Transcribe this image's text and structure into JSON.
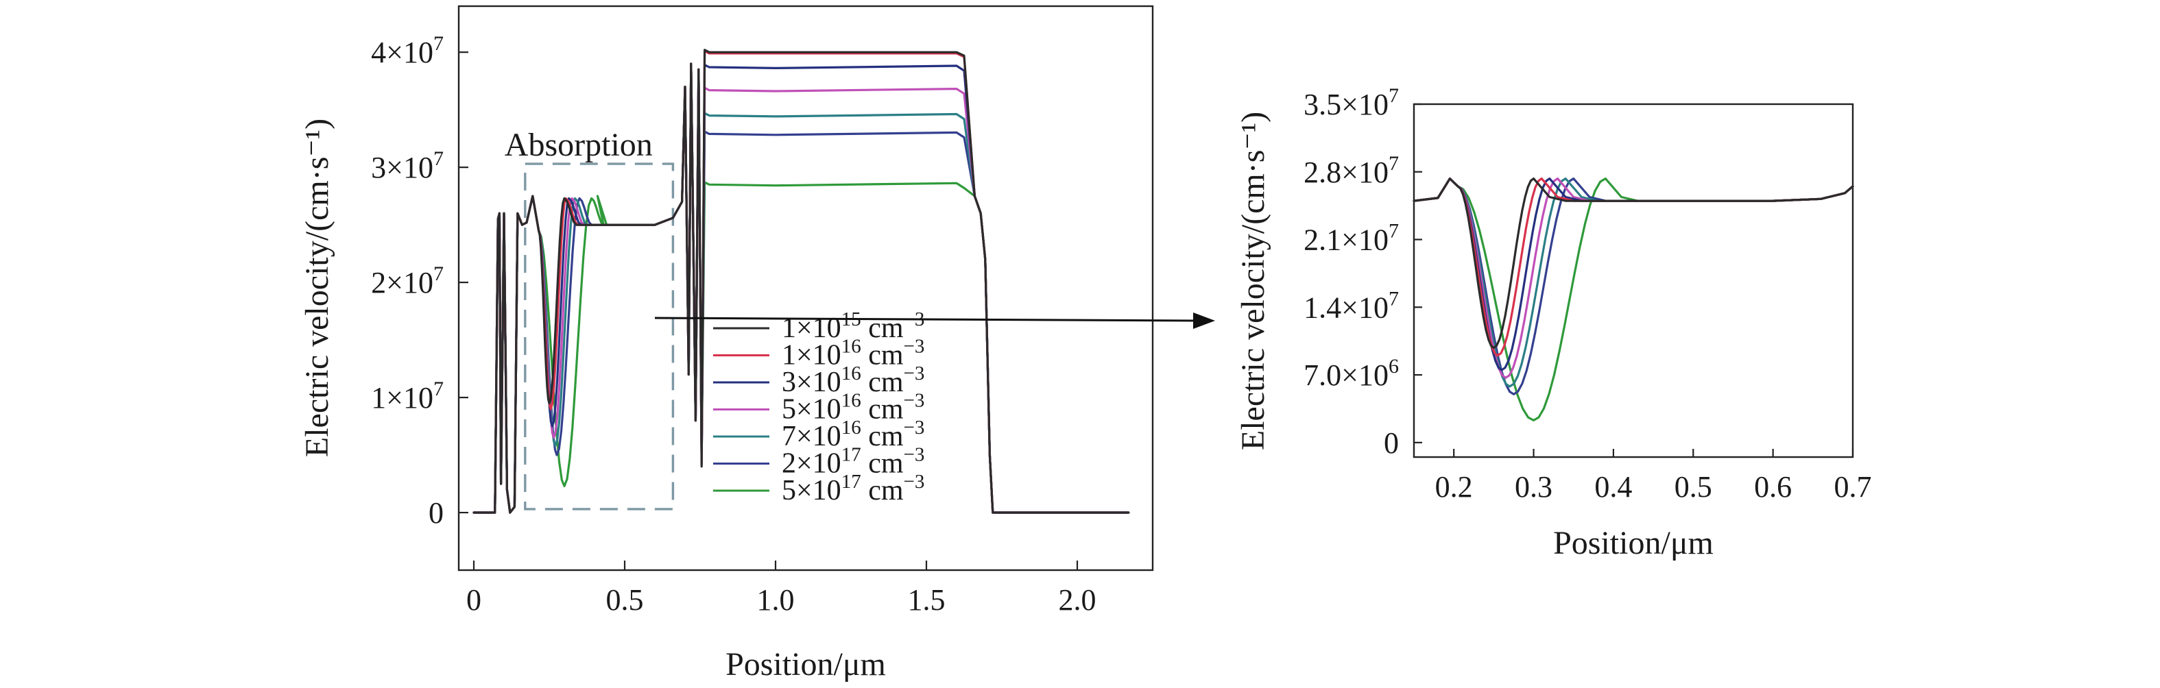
{
  "colors": {
    "s1": "#2b2b2b",
    "s2": "#d8324c",
    "s3": "#25307f",
    "s4": "#c050b8",
    "s5": "#2b7f86",
    "s6": "#34408f",
    "s7": "#2f9a3a",
    "box": "#7e98a4"
  },
  "chart_data": [
    {
      "type": "line",
      "xlabel": "Position/μm",
      "ylabel": "Electric velocity/(cm·s⁻¹)",
      "xlim": [
        -0.05,
        2.25
      ],
      "ylim": [
        -5000000,
        44000000
      ],
      "xticks": [
        0,
        0.5,
        1.0,
        1.5,
        2.0
      ],
      "xtick_labels": [
        "0",
        "0.5",
        "1.0",
        "1.5",
        "2.0"
      ],
      "yticks": [
        0,
        10000000,
        20000000,
        30000000,
        40000000
      ],
      "ytick_labels": [
        {
          "base": "0",
          "exp": ""
        },
        {
          "base": "1×10",
          "exp": "7"
        },
        {
          "base": "2×10",
          "exp": "7"
        },
        {
          "base": "3×10",
          "exp": "7"
        },
        {
          "base": "4×10",
          "exp": "7"
        }
      ],
      "annotation": "Absorption",
      "absorption_region": {
        "x": [
          0.17,
          0.66
        ],
        "y": [
          300000,
          30300000
        ]
      },
      "legend_placement": "bottom-center",
      "series": [
        {
          "name": {
            "base": "1×10",
            "exp": "15",
            "unit": " cm",
            "uexp": "−3"
          },
          "color_key": "s1",
          "plateau": 40000000,
          "dip_min": 9500000,
          "dip_x": 0.25,
          "dip_end": 0.3
        },
        {
          "name": {
            "base": "1×10",
            "exp": "16",
            "unit": " cm",
            "uexp": "−3"
          },
          "color_key": "s2",
          "plateau": 39900000,
          "dip_min": 9000000,
          "dip_x": 0.255,
          "dip_end": 0.305
        },
        {
          "name": {
            "base": "3×10",
            "exp": "16",
            "unit": " cm",
            "uexp": "−3"
          },
          "color_key": "s3",
          "plateau": 38700000,
          "dip_min": 7500000,
          "dip_x": 0.26,
          "dip_end": 0.315
        },
        {
          "name": {
            "base": "5×10",
            "exp": "16",
            "unit": " cm",
            "uexp": "−3"
          },
          "color_key": "s4",
          "plateau": 36700000,
          "dip_min": 6500000,
          "dip_x": 0.265,
          "dip_end": 0.325
        },
        {
          "name": {
            "base": "7×10",
            "exp": "16",
            "unit": " cm",
            "uexp": "−3"
          },
          "color_key": "s5",
          "plateau": 34500000,
          "dip_min": 5800000,
          "dip_x": 0.27,
          "dip_end": 0.335
        },
        {
          "name": {
            "base": "2×10",
            "exp": "17",
            "unit": " cm",
            "uexp": "−3"
          },
          "color_key": "s6",
          "plateau": 32900000,
          "dip_min": 5000000,
          "dip_x": 0.275,
          "dip_end": 0.35
        },
        {
          "name": {
            "base": "5×10",
            "exp": "17",
            "unit": " cm",
            "uexp": "−3"
          },
          "color_key": "s7",
          "plateau": 28500000,
          "dip_min": 2300000,
          "dip_x": 0.3,
          "dip_end": 0.39
        }
      ]
    },
    {
      "type": "line",
      "xlabel": "Position/μm",
      "ylabel": "Electric velocity/(cm·s⁻¹)",
      "xlim": [
        0.15,
        0.7
      ],
      "ylim": [
        -1500000,
        35000000
      ],
      "xticks": [
        0.2,
        0.3,
        0.4,
        0.5,
        0.6,
        0.7
      ],
      "xtick_labels": [
        "0.2",
        "0.3",
        "0.4",
        "0.5",
        "0.6",
        "0.7"
      ],
      "yticks": [
        0,
        7000000,
        14000000,
        21000000,
        28000000,
        35000000
      ],
      "ytick_labels": [
        {
          "base": "0",
          "exp": ""
        },
        {
          "base": "7.0×10",
          "exp": "6"
        },
        {
          "base": "1.4×10",
          "exp": "7"
        },
        {
          "base": "2.1×10",
          "exp": "7"
        },
        {
          "base": "2.8×10",
          "exp": "7"
        },
        {
          "base": "3.5×10",
          "exp": "7"
        }
      ],
      "baseline": 25000000,
      "series_minima": [
        {
          "x": 0.25,
          "y": 9800000,
          "peak_x": 0.3
        },
        {
          "x": 0.255,
          "y": 9000000,
          "peak_x": 0.31
        },
        {
          "x": 0.26,
          "y": 7500000,
          "peak_x": 0.32
        },
        {
          "x": 0.265,
          "y": 6700000,
          "peak_x": 0.33
        },
        {
          "x": 0.27,
          "y": 5800000,
          "peak_x": 0.34
        },
        {
          "x": 0.275,
          "y": 5000000,
          "peak_x": 0.35
        },
        {
          "x": 0.3,
          "y": 2300000,
          "peak_x": 0.39
        }
      ]
    }
  ]
}
